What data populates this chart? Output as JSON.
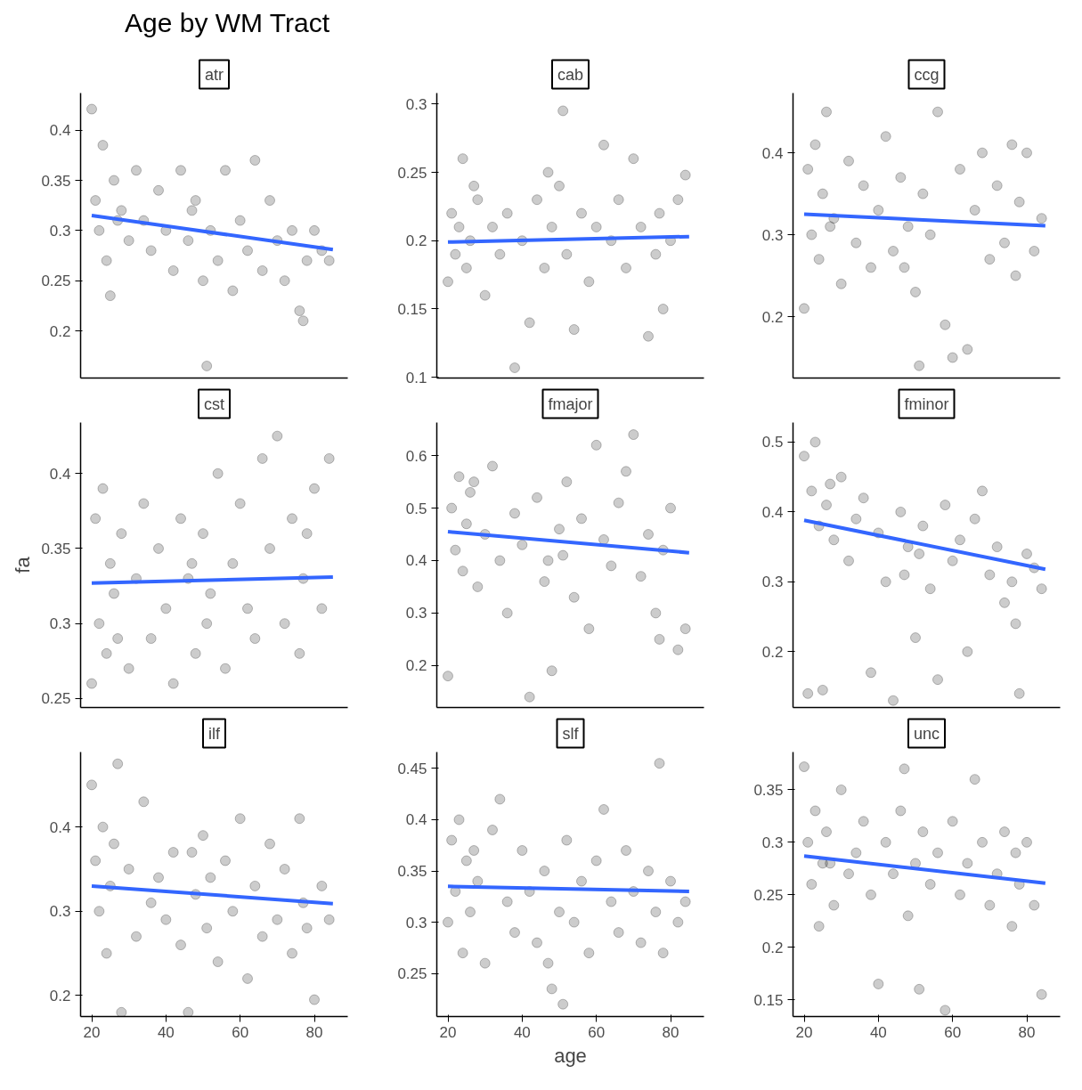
{
  "chart_data": [
    {
      "type": "other",
      "title": "Age by WM Tract"
    },
    {
      "type": "scatter",
      "title": "atr",
      "tick_labels": "y",
      "xlim": [
        17,
        89
      ],
      "xticks": [
        20,
        40,
        60,
        80
      ],
      "ylim": [
        0.153,
        0.437
      ],
      "yticks": [
        0.2,
        0.25,
        0.3,
        0.35,
        0.4
      ],
      "series": [
        {
          "type": "scatter",
          "marker": "circle",
          "color": "#000000",
          "x": [
            20,
            21,
            22,
            23,
            24,
            25,
            26,
            28,
            30,
            32,
            34,
            36,
            38,
            40,
            42,
            44,
            46,
            48,
            50,
            51,
            52,
            54,
            56,
            58,
            60,
            62,
            64,
            66,
            68,
            70,
            72,
            74,
            76,
            77,
            78,
            80,
            82,
            84,
            27,
            47
          ],
          "values": [
            0.421,
            0.33,
            0.3,
            0.385,
            0.27,
            0.235,
            0.35,
            0.32,
            0.29,
            0.36,
            0.31,
            0.28,
            0.34,
            0.3,
            0.26,
            0.36,
            0.29,
            0.33,
            0.25,
            0.165,
            0.3,
            0.27,
            0.36,
            0.24,
            0.31,
            0.28,
            0.37,
            0.26,
            0.33,
            0.29,
            0.25,
            0.3,
            0.22,
            0.21,
            0.27,
            0.3,
            0.28,
            0.27,
            0.31,
            0.32
          ]
        },
        {
          "type": "line",
          "color": "#3366ff",
          "x": [
            20,
            85
          ],
          "values": [
            0.315,
            0.281
          ]
        }
      ]
    },
    {
      "type": "scatter",
      "title": "cab",
      "tick_labels": "y",
      "xlim": [
        17,
        89
      ],
      "xticks": [
        20,
        40,
        60,
        80
      ],
      "ylim": [
        0.0995,
        0.308
      ],
      "yticks": [
        0.1,
        0.15,
        0.2,
        0.25,
        0.3
      ],
      "series": [
        {
          "type": "scatter",
          "marker": "circle",
          "color": "#000000",
          "x": [
            20,
            21,
            22,
            23,
            24,
            25,
            26,
            28,
            30,
            32,
            34,
            36,
            38,
            40,
            42,
            44,
            46,
            48,
            50,
            51,
            52,
            54,
            56,
            58,
            60,
            62,
            64,
            66,
            68,
            70,
            72,
            74,
            76,
            77,
            78,
            80,
            82,
            84,
            27,
            47
          ],
          "values": [
            0.17,
            0.22,
            0.19,
            0.21,
            0.26,
            0.18,
            0.2,
            0.23,
            0.16,
            0.21,
            0.19,
            0.22,
            0.107,
            0.2,
            0.14,
            0.23,
            0.18,
            0.21,
            0.24,
            0.295,
            0.19,
            0.135,
            0.22,
            0.17,
            0.21,
            0.27,
            0.2,
            0.23,
            0.18,
            0.26,
            0.21,
            0.13,
            0.19,
            0.22,
            0.15,
            0.2,
            0.23,
            0.248,
            0.24,
            0.25
          ]
        },
        {
          "type": "line",
          "color": "#3366ff",
          "x": [
            20,
            85
          ],
          "values": [
            0.199,
            0.203
          ]
        }
      ]
    },
    {
      "type": "scatter",
      "title": "ccg",
      "tick_labels": "y",
      "xlim": [
        17,
        89
      ],
      "xticks": [
        20,
        40,
        60,
        80
      ],
      "ylim": [
        0.125,
        0.473
      ],
      "yticks": [
        0.2,
        0.3,
        0.4
      ],
      "series": [
        {
          "type": "scatter",
          "marker": "circle",
          "color": "#000000",
          "x": [
            20,
            21,
            22,
            23,
            24,
            25,
            26,
            28,
            30,
            32,
            34,
            36,
            38,
            40,
            42,
            44,
            46,
            48,
            50,
            51,
            52,
            54,
            56,
            58,
            60,
            62,
            64,
            66,
            68,
            70,
            72,
            74,
            76,
            77,
            78,
            80,
            82,
            84,
            27,
            47
          ],
          "values": [
            0.21,
            0.38,
            0.3,
            0.41,
            0.27,
            0.35,
            0.45,
            0.32,
            0.24,
            0.39,
            0.29,
            0.36,
            0.26,
            0.33,
            0.42,
            0.28,
            0.37,
            0.31,
            0.23,
            0.14,
            0.35,
            0.3,
            0.45,
            0.19,
            0.15,
            0.38,
            0.16,
            0.33,
            0.4,
            0.27,
            0.36,
            0.29,
            0.41,
            0.25,
            0.34,
            0.4,
            0.28,
            0.32,
            0.31,
            0.26
          ]
        },
        {
          "type": "line",
          "color": "#3366ff",
          "x": [
            20,
            85
          ],
          "values": [
            0.325,
            0.311
          ]
        }
      ]
    },
    {
      "type": "scatter",
      "title": "cst",
      "ylabel": "fa",
      "tick_labels": "y",
      "xlim": [
        17,
        89
      ],
      "xticks": [
        20,
        40,
        60,
        80
      ],
      "ylim": [
        0.244,
        0.434
      ],
      "yticks": [
        0.25,
        0.3,
        0.35,
        0.4
      ],
      "series": [
        {
          "type": "scatter",
          "marker": "circle",
          "color": "#000000",
          "x": [
            20,
            21,
            22,
            23,
            24,
            25,
            26,
            28,
            30,
            32,
            34,
            36,
            38,
            40,
            42,
            44,
            46,
            48,
            50,
            51,
            52,
            54,
            56,
            58,
            60,
            62,
            64,
            66,
            68,
            70,
            72,
            74,
            76,
            77,
            78,
            80,
            82,
            84,
            27,
            47
          ],
          "values": [
            0.26,
            0.37,
            0.3,
            0.39,
            0.28,
            0.34,
            0.32,
            0.36,
            0.27,
            0.33,
            0.38,
            0.29,
            0.35,
            0.31,
            0.26,
            0.37,
            0.33,
            0.28,
            0.36,
            0.3,
            0.32,
            0.4,
            0.27,
            0.34,
            0.38,
            0.31,
            0.29,
            0.41,
            0.35,
            0.425,
            0.3,
            0.37,
            0.28,
            0.33,
            0.36,
            0.39,
            0.31,
            0.41,
            0.29,
            0.34
          ]
        },
        {
          "type": "line",
          "color": "#3366ff",
          "x": [
            20,
            85
          ],
          "values": [
            0.327,
            0.331
          ]
        }
      ]
    },
    {
      "type": "scatter",
      "title": "fmajor",
      "tick_labels": "y",
      "xlim": [
        17,
        89
      ],
      "xticks": [
        20,
        40,
        60,
        80
      ],
      "ylim": [
        0.12,
        0.663
      ],
      "yticks": [
        0.2,
        0.3,
        0.4,
        0.5,
        0.6
      ],
      "series": [
        {
          "type": "scatter",
          "marker": "circle",
          "color": "#000000",
          "x": [
            20,
            21,
            22,
            23,
            24,
            25,
            26,
            28,
            30,
            32,
            34,
            36,
            38,
            40,
            42,
            44,
            46,
            48,
            50,
            51,
            52,
            54,
            56,
            58,
            60,
            62,
            64,
            66,
            68,
            70,
            72,
            74,
            76,
            77,
            78,
            80,
            82,
            84,
            27,
            47
          ],
          "values": [
            0.18,
            0.5,
            0.42,
            0.56,
            0.38,
            0.47,
            0.53,
            0.35,
            0.45,
            0.58,
            0.4,
            0.3,
            0.49,
            0.43,
            0.14,
            0.52,
            0.36,
            0.19,
            0.46,
            0.41,
            0.55,
            0.33,
            0.48,
            0.27,
            0.62,
            0.44,
            0.39,
            0.51,
            0.57,
            0.64,
            0.37,
            0.45,
            0.3,
            0.25,
            0.42,
            0.5,
            0.23,
            0.27,
            0.55,
            0.4
          ]
        },
        {
          "type": "line",
          "color": "#3366ff",
          "x": [
            20,
            85
          ],
          "values": [
            0.455,
            0.415
          ]
        }
      ]
    },
    {
      "type": "scatter",
      "title": "fminor",
      "tick_labels": "y",
      "xlim": [
        17,
        89
      ],
      "xticks": [
        20,
        40,
        60,
        80
      ],
      "ylim": [
        0.12,
        0.528
      ],
      "yticks": [
        0.2,
        0.3,
        0.4,
        0.5
      ],
      "series": [
        {
          "type": "scatter",
          "marker": "circle",
          "color": "#000000",
          "x": [
            20,
            21,
            22,
            23,
            24,
            25,
            26,
            28,
            30,
            32,
            34,
            36,
            38,
            40,
            42,
            44,
            46,
            48,
            50,
            51,
            52,
            54,
            56,
            58,
            60,
            62,
            64,
            66,
            68,
            70,
            72,
            74,
            76,
            77,
            78,
            80,
            82,
            84,
            27,
            47
          ],
          "values": [
            0.48,
            0.14,
            0.43,
            0.5,
            0.38,
            0.145,
            0.41,
            0.36,
            0.45,
            0.33,
            0.39,
            0.42,
            0.17,
            0.37,
            0.3,
            0.13,
            0.4,
            0.35,
            0.22,
            0.34,
            0.38,
            0.29,
            0.16,
            0.41,
            0.33,
            0.36,
            0.2,
            0.39,
            0.43,
            0.31,
            0.35,
            0.27,
            0.3,
            0.24,
            0.14,
            0.34,
            0.32,
            0.29,
            0.44,
            0.31
          ]
        },
        {
          "type": "line",
          "color": "#3366ff",
          "x": [
            20,
            85
          ],
          "values": [
            0.388,
            0.318
          ]
        }
      ]
    },
    {
      "type": "scatter",
      "title": "ilf",
      "xlim": [
        17,
        89
      ],
      "xticks": [
        20,
        40,
        60,
        80
      ],
      "ylim": [
        0.175,
        0.489
      ],
      "yticks": [
        0.2,
        0.3,
        0.4
      ],
      "series": [
        {
          "type": "scatter",
          "marker": "circle",
          "color": "#000000",
          "x": [
            20,
            21,
            22,
            23,
            24,
            25,
            26,
            28,
            30,
            32,
            34,
            36,
            38,
            40,
            42,
            44,
            46,
            48,
            50,
            51,
            52,
            54,
            56,
            58,
            60,
            62,
            64,
            66,
            68,
            70,
            72,
            74,
            76,
            77,
            78,
            80,
            82,
            84,
            27,
            47
          ],
          "values": [
            0.45,
            0.36,
            0.3,
            0.4,
            0.25,
            0.33,
            0.38,
            0.18,
            0.35,
            0.27,
            0.43,
            0.31,
            0.34,
            0.29,
            0.37,
            0.26,
            0.18,
            0.32,
            0.39,
            0.28,
            0.34,
            0.24,
            0.36,
            0.3,
            0.41,
            0.22,
            0.33,
            0.27,
            0.38,
            0.29,
            0.35,
            0.25,
            0.41,
            0.31,
            0.28,
            0.195,
            0.33,
            0.29,
            0.475,
            0.37
          ]
        },
        {
          "type": "line",
          "color": "#3366ff",
          "x": [
            20,
            85
          ],
          "values": [
            0.33,
            0.309
          ]
        }
      ]
    },
    {
      "type": "scatter",
      "title": "slf",
      "xlabel": "age",
      "xlim": [
        17,
        89
      ],
      "xticks": [
        20,
        40,
        60,
        80
      ],
      "ylim": [
        0.208,
        0.466
      ],
      "yticks": [
        0.25,
        0.3,
        0.35,
        0.4,
        0.45
      ],
      "series": [
        {
          "type": "scatter",
          "marker": "circle",
          "color": "#000000",
          "x": [
            20,
            21,
            22,
            23,
            24,
            25,
            26,
            28,
            30,
            32,
            34,
            36,
            38,
            40,
            42,
            44,
            46,
            48,
            50,
            51,
            52,
            54,
            56,
            58,
            60,
            62,
            64,
            66,
            68,
            70,
            72,
            74,
            76,
            77,
            78,
            80,
            82,
            84,
            27,
            47
          ],
          "values": [
            0.3,
            0.38,
            0.33,
            0.4,
            0.27,
            0.36,
            0.31,
            0.34,
            0.26,
            0.39,
            0.42,
            0.32,
            0.29,
            0.37,
            0.33,
            0.28,
            0.35,
            0.235,
            0.31,
            0.22,
            0.38,
            0.3,
            0.34,
            0.27,
            0.36,
            0.41,
            0.32,
            0.29,
            0.37,
            0.33,
            0.28,
            0.35,
            0.31,
            0.455,
            0.27,
            0.34,
            0.3,
            0.32,
            0.37,
            0.26
          ]
        },
        {
          "type": "line",
          "color": "#3366ff",
          "x": [
            20,
            85
          ],
          "values": [
            0.335,
            0.33
          ]
        }
      ]
    },
    {
      "type": "scatter",
      "title": "unc",
      "xlim": [
        17,
        89
      ],
      "xticks": [
        20,
        40,
        60,
        80
      ],
      "ylim": [
        0.134,
        0.386
      ],
      "yticks": [
        0.15,
        0.2,
        0.25,
        0.3,
        0.35
      ],
      "series": [
        {
          "type": "scatter",
          "marker": "circle",
          "color": "#000000",
          "x": [
            20,
            21,
            22,
            23,
            24,
            25,
            26,
            28,
            30,
            32,
            34,
            36,
            38,
            40,
            42,
            44,
            46,
            48,
            50,
            51,
            52,
            54,
            56,
            58,
            60,
            62,
            64,
            66,
            68,
            70,
            72,
            74,
            76,
            77,
            78,
            80,
            82,
            84,
            27,
            47
          ],
          "values": [
            0.372,
            0.3,
            0.26,
            0.33,
            0.22,
            0.28,
            0.31,
            0.24,
            0.35,
            0.27,
            0.29,
            0.32,
            0.25,
            0.165,
            0.3,
            0.27,
            0.33,
            0.23,
            0.28,
            0.16,
            0.31,
            0.26,
            0.29,
            0.14,
            0.32,
            0.25,
            0.28,
            0.36,
            0.3,
            0.24,
            0.27,
            0.31,
            0.22,
            0.29,
            0.26,
            0.3,
            0.24,
            0.155,
            0.28,
            0.37
          ]
        },
        {
          "type": "line",
          "color": "#3366ff",
          "x": [
            20,
            85
          ],
          "values": [
            0.287,
            0.261
          ]
        }
      ]
    }
  ]
}
